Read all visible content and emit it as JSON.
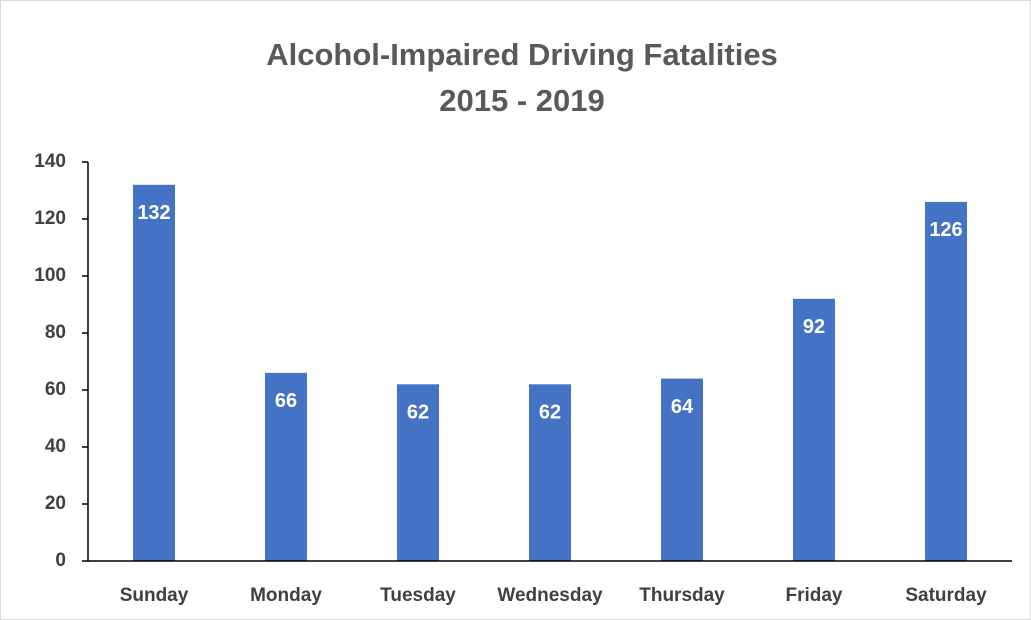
{
  "chart_data": {
    "type": "bar",
    "title": "Alcohol-Impaired Driving Fatalities",
    "subtitle": "2015 - 2019",
    "categories": [
      "Sunday",
      "Monday",
      "Tuesday",
      "Wednesday",
      "Thursday",
      "Friday",
      "Saturday"
    ],
    "values": [
      132,
      66,
      62,
      62,
      64,
      92,
      126
    ],
    "color": "#4472c4",
    "ylim": [
      0,
      140
    ],
    "yticks": [
      0,
      20,
      40,
      60,
      80,
      100,
      120,
      140
    ],
    "grid": false
  }
}
